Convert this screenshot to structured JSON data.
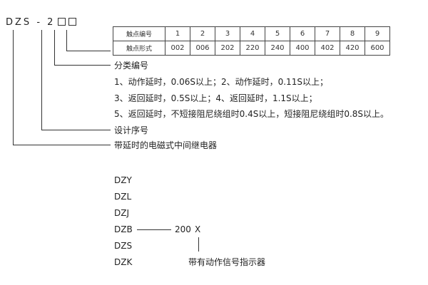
{
  "model_code": {
    "prefix": "DZS",
    "dash": "-",
    "digit": "2"
  },
  "table": {
    "row1_header": "触点编号",
    "row2_header": "触点形式",
    "numbers": [
      "1",
      "2",
      "3",
      "4",
      "5",
      "6",
      "7",
      "8",
      "9"
    ],
    "forms": [
      "002",
      "006",
      "202",
      "220",
      "240",
      "400",
      "402",
      "420",
      "600"
    ]
  },
  "labels": {
    "classification": "分类编号",
    "class_line1": "1、动作延时，0.06S以上；2、动作延时，0.11S以上；",
    "class_line2": "3、返回延时，0.5S以上；4、返回延时，1.1S以上；",
    "class_line3": "5、返回延时，不短接阻尼绕组时0.4S以上，短接阻尼绕组时0.8S以上。",
    "design_serial": "设计序号",
    "type_desc": "带延时的电磁式中间继电器"
  },
  "series": [
    "DZY",
    "DZL",
    "DZJ",
    "DZB",
    "DZS",
    "DZK"
  ],
  "suffix": {
    "value": "200",
    "mark": "X",
    "desc": "带有动作信号指示器"
  }
}
